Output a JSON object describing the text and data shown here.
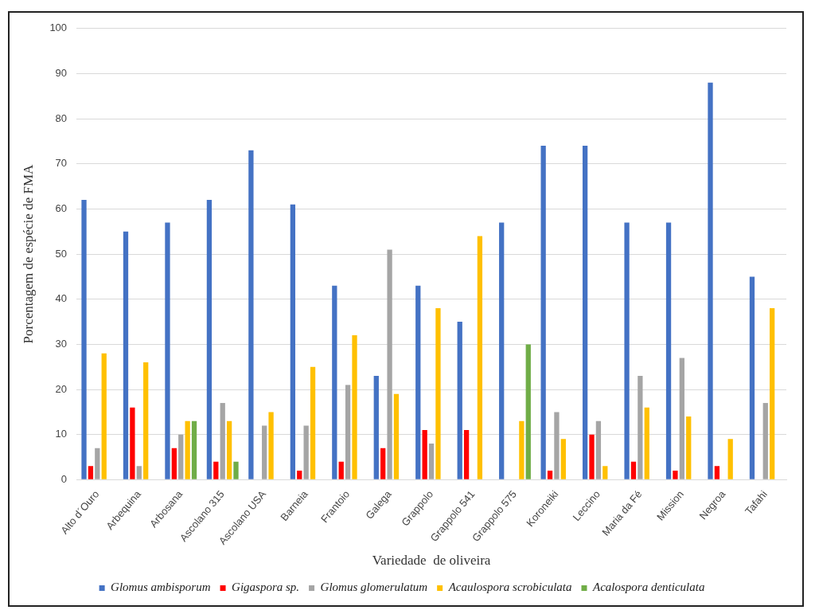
{
  "chart_data": {
    "type": "bar",
    "xlabel": "Variedade  de oliveira",
    "ylabel": "Porcentagem de espécie de FMA",
    "categories": [
      "Alto d´Ouro",
      "Arbequina",
      "Arbosana",
      "Ascolano 315",
      "Ascolano USA",
      "Barneia",
      "Frantoio",
      "Galega",
      "Grappolo",
      "Grappolo 541",
      "Grappolo 575",
      "Koroneiki",
      "Leccino",
      "Maria da Fé",
      "Mission",
      "Negroa",
      "Tafahi"
    ],
    "series": [
      {
        "name": "Glomus ambisporum",
        "color": "#4472c4",
        "values": [
          62,
          55,
          57,
          62,
          73,
          61,
          43,
          23,
          43,
          35,
          57,
          74,
          74,
          57,
          57,
          88,
          45
        ]
      },
      {
        "name": "Gigaspora sp.",
        "color": "#ff0000",
        "values": [
          3,
          16,
          7,
          4,
          null,
          2,
          4,
          7,
          11,
          11,
          null,
          2,
          10,
          4,
          2,
          3,
          null
        ]
      },
      {
        "name": "Glomus glomerulatum",
        "color": "#a5a5a5",
        "values": [
          7,
          3,
          10,
          17,
          12,
          12,
          21,
          51,
          8,
          null,
          null,
          15,
          13,
          23,
          27,
          null,
          17
        ]
      },
      {
        "name": "Acaulospora scrobiculata",
        "color": "#ffc000",
        "values": [
          28,
          26,
          13,
          13,
          15,
          25,
          32,
          19,
          38,
          54,
          13,
          9,
          3,
          16,
          14,
          9,
          38
        ]
      },
      {
        "name": "Acalospora denticulata",
        "color": "#70ad47",
        "values": [
          null,
          null,
          13,
          4,
          null,
          null,
          null,
          null,
          null,
          null,
          30,
          null,
          null,
          null,
          null,
          null,
          null
        ]
      }
    ],
    "ylim": [
      0,
      100
    ],
    "yticks": [
      0,
      10,
      20,
      30,
      40,
      50,
      60,
      70,
      80,
      90,
      100
    ],
    "grid": "y",
    "legend": "bottom"
  }
}
